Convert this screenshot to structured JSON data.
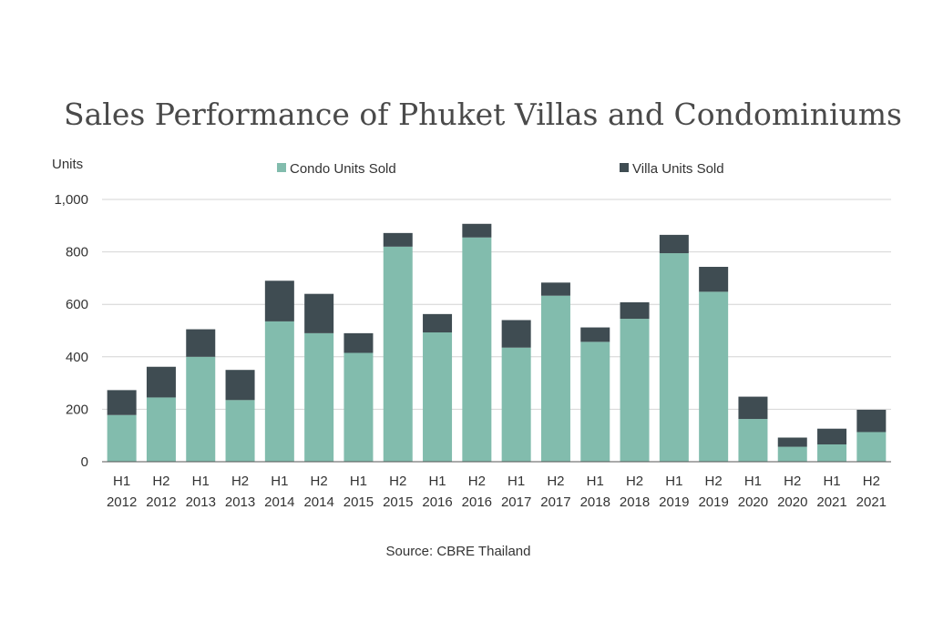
{
  "chart_data": {
    "type": "bar",
    "stacked": true,
    "title": "Sales Performance of Phuket Villas and Condominiums",
    "ylabel": "Units",
    "ylim": [
      0,
      1000
    ],
    "yticks": [
      "0",
      "200",
      "400",
      "600",
      "800",
      "1,000"
    ],
    "grid": true,
    "legend_position": "top",
    "categories": [
      [
        "H1",
        "2012"
      ],
      [
        "H2",
        "2012"
      ],
      [
        "H1",
        "2013"
      ],
      [
        "H2",
        "2013"
      ],
      [
        "H1",
        "2014"
      ],
      [
        "H2",
        "2014"
      ],
      [
        "H1",
        "2015"
      ],
      [
        "H2",
        "2015"
      ],
      [
        "H1",
        "2016"
      ],
      [
        "H2",
        "2016"
      ],
      [
        "H1",
        "2017"
      ],
      [
        "H2",
        "2017"
      ],
      [
        "H1",
        "2018"
      ],
      [
        "H2",
        "2018"
      ],
      [
        "H1",
        "2019"
      ],
      [
        "H2",
        "2019"
      ],
      [
        "H1",
        "2020"
      ],
      [
        "H2",
        "2020"
      ],
      [
        "H1",
        "2021"
      ],
      [
        "H2",
        "2021"
      ]
    ],
    "series": [
      {
        "name": "Condo Units Sold",
        "color": "#82bcad",
        "values": [
          178,
          245,
          400,
          235,
          535,
          490,
          415,
          820,
          493,
          855,
          435,
          633,
          457,
          545,
          795,
          648,
          163,
          57,
          66,
          113
        ]
      },
      {
        "name": "Villa Units Sold",
        "color": "#3f4c52",
        "values": [
          95,
          117,
          105,
          115,
          155,
          150,
          75,
          52,
          70,
          52,
          105,
          50,
          55,
          63,
          70,
          95,
          85,
          35,
          60,
          85
        ]
      }
    ],
    "source": "Source: CBRE Thailand"
  }
}
